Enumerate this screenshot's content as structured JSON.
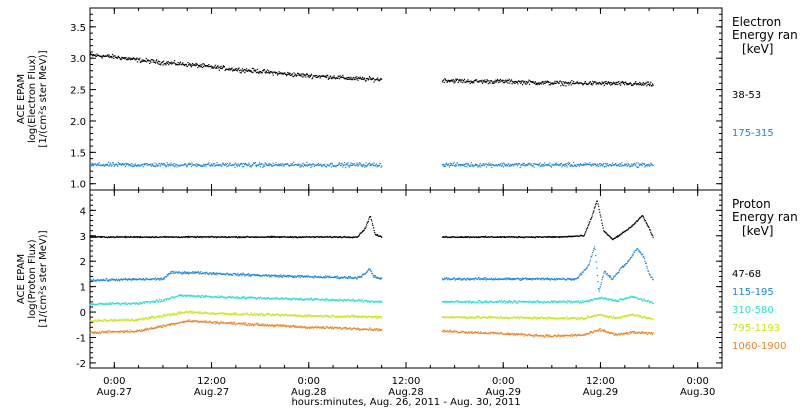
{
  "chart_data": {
    "type": "scatter",
    "xlabel": "hours:minutes, Aug. 26, 2011 - Aug. 30, 2011",
    "x_ticks": [
      {
        "time": "0:00",
        "date": "Aug.27",
        "hours": 0
      },
      {
        "time": "12:00",
        "date": "Aug.27",
        "hours": 12
      },
      {
        "time": "0:00",
        "date": "Aug.28",
        "hours": 24
      },
      {
        "time": "12:00",
        "date": "Aug.28",
        "hours": 36
      },
      {
        "time": "0:00",
        "date": "Aug.29",
        "hours": 48
      },
      {
        "time": "12:00",
        "date": "Aug.29",
        "hours": 60
      },
      {
        "time": "0:00",
        "date": "Aug.30",
        "hours": 72
      }
    ],
    "xlim_hours": [
      -3,
      75
    ],
    "panels": [
      {
        "ylabel_lines": [
          "ACE EPAM",
          "log(Electron Flux)",
          "[1/(cm²s ster MeV)]"
        ],
        "ylim": [
          0.9,
          3.8
        ],
        "yticks": [
          "1.0",
          "1.5",
          "2.0",
          "2.5",
          "3.0",
          "3.5"
        ],
        "yticks_values": [
          1.0,
          1.5,
          2.0,
          2.5,
          3.0,
          3.5
        ],
        "legend_title": [
          "Electron",
          "Energy ran",
          "[keV]"
        ],
        "series": [
          {
            "name": "38-53",
            "color": "#000000",
            "segments": [
              {
                "points": [
                  [
                    -3,
                    3.05
                  ],
                  [
                    0,
                    3.02
                  ],
                  [
                    3,
                    2.97
                  ],
                  [
                    6,
                    2.93
                  ],
                  [
                    9,
                    2.9
                  ],
                  [
                    12,
                    2.86
                  ],
                  [
                    15,
                    2.82
                  ],
                  [
                    18,
                    2.79
                  ],
                  [
                    21,
                    2.75
                  ],
                  [
                    24,
                    2.72
                  ],
                  [
                    27,
                    2.7
                  ],
                  [
                    30,
                    2.67
                  ],
                  [
                    33,
                    2.66
                  ]
                ]
              },
              {
                "points": [
                  [
                    40.5,
                    2.65
                  ],
                  [
                    44,
                    2.63
                  ],
                  [
                    48,
                    2.63
                  ],
                  [
                    52,
                    2.61
                  ],
                  [
                    56,
                    2.6
                  ],
                  [
                    60,
                    2.6
                  ],
                  [
                    64,
                    2.59
                  ],
                  [
                    66.5,
                    2.58
                  ]
                ]
              }
            ]
          },
          {
            "name": "175-315",
            "color": "#1f86d6",
            "segments": [
              {
                "points": [
                  [
                    -3,
                    1.3
                  ],
                  [
                    9,
                    1.3
                  ],
                  [
                    21,
                    1.3
                  ],
                  [
                    33,
                    1.3
                  ]
                ]
              },
              {
                "points": [
                  [
                    40.5,
                    1.3
                  ],
                  [
                    52,
                    1.3
                  ],
                  [
                    66.5,
                    1.3
                  ]
                ]
              }
            ]
          }
        ]
      },
      {
        "ylabel_lines": [
          "ACE EPAM",
          "log(Proton Flux)",
          "[1/(cm²s ster MeV)]"
        ],
        "ylim": [
          -2.2,
          4.8
        ],
        "yticks": [
          "-2",
          "-1",
          "0",
          "1",
          "2",
          "3",
          "4"
        ],
        "yticks_values": [
          -2,
          -1,
          0,
          1,
          2,
          3,
          4
        ],
        "legend_title": [
          "Proton",
          "Energy ran",
          "[keV]"
        ],
        "series": [
          {
            "name": "47-68",
            "color": "#000000",
            "segments": [
              {
                "points": [
                  [
                    -3,
                    2.95
                  ],
                  [
                    10,
                    2.95
                  ],
                  [
                    20,
                    2.95
                  ],
                  [
                    30,
                    2.95
                  ],
                  [
                    31,
                    3.3
                  ],
                  [
                    31.6,
                    3.8
                  ],
                  [
                    32.2,
                    3.05
                  ],
                  [
                    33,
                    2.95
                  ]
                ]
              },
              {
                "points": [
                  [
                    40.5,
                    2.95
                  ],
                  [
                    45,
                    2.95
                  ],
                  [
                    49,
                    2.95
                  ],
                  [
                    55,
                    2.95
                  ],
                  [
                    58,
                    3.0
                  ],
                  [
                    59,
                    3.8
                  ],
                  [
                    59.6,
                    4.4
                  ],
                  [
                    60.4,
                    3.2
                  ],
                  [
                    61.5,
                    2.85
                  ],
                  [
                    62.5,
                    3.05
                  ],
                  [
                    64,
                    3.4
                  ],
                  [
                    65.2,
                    3.8
                  ],
                  [
                    66,
                    3.3
                  ],
                  [
                    66.5,
                    2.95
                  ]
                ]
              }
            ]
          },
          {
            "name": "115-195",
            "color": "#1f86d6",
            "segments": [
              {
                "points": [
                  [
                    -3,
                    1.25
                  ],
                  [
                    2,
                    1.28
                  ],
                  [
                    6,
                    1.3
                  ],
                  [
                    7,
                    1.55
                  ],
                  [
                    10,
                    1.55
                  ],
                  [
                    15,
                    1.48
                  ],
                  [
                    20,
                    1.42
                  ],
                  [
                    25,
                    1.38
                  ],
                  [
                    30,
                    1.35
                  ],
                  [
                    31,
                    1.5
                  ],
                  [
                    31.5,
                    1.7
                  ],
                  [
                    32,
                    1.4
                  ],
                  [
                    33,
                    1.3
                  ]
                ]
              },
              {
                "points": [
                  [
                    40.5,
                    1.3
                  ],
                  [
                    48,
                    1.3
                  ],
                  [
                    57,
                    1.3
                  ],
                  [
                    58.5,
                    1.8
                  ],
                  [
                    59.3,
                    2.6
                  ],
                  [
                    59.8,
                    0.8
                  ],
                  [
                    60.5,
                    1.6
                  ],
                  [
                    61.5,
                    1.3
                  ],
                  [
                    62.5,
                    1.7
                  ],
                  [
                    63.5,
                    2.0
                  ],
                  [
                    64.5,
                    2.5
                  ],
                  [
                    65.3,
                    2.2
                  ],
                  [
                    66,
                    1.5
                  ],
                  [
                    66.5,
                    1.3
                  ]
                ]
              }
            ]
          },
          {
            "name": "310-580",
            "color": "#33dcd2",
            "segments": [
              {
                "points": [
                  [
                    -3,
                    0.3
                  ],
                  [
                    3,
                    0.35
                  ],
                  [
                    6,
                    0.45
                  ],
                  [
                    8,
                    0.65
                  ],
                  [
                    12,
                    0.6
                  ],
                  [
                    18,
                    0.55
                  ],
                  [
                    24,
                    0.5
                  ],
                  [
                    30,
                    0.45
                  ],
                  [
                    33,
                    0.4
                  ]
                ]
              },
              {
                "points": [
                  [
                    40.5,
                    0.4
                  ],
                  [
                    48,
                    0.4
                  ],
                  [
                    58,
                    0.4
                  ],
                  [
                    60,
                    0.55
                  ],
                  [
                    62,
                    0.45
                  ],
                  [
                    64,
                    0.6
                  ],
                  [
                    66.5,
                    0.35
                  ]
                ]
              }
            ]
          },
          {
            "name": "795-1193",
            "color": "#c8e619",
            "segments": [
              {
                "points": [
                  [
                    -3,
                    -0.35
                  ],
                  [
                    3,
                    -0.3
                  ],
                  [
                    6,
                    -0.15
                  ],
                  [
                    9,
                    0.0
                  ],
                  [
                    12,
                    -0.05
                  ],
                  [
                    18,
                    -0.1
                  ],
                  [
                    24,
                    -0.15
                  ],
                  [
                    30,
                    -0.18
                  ],
                  [
                    33,
                    -0.2
                  ]
                ]
              },
              {
                "points": [
                  [
                    40.5,
                    -0.2
                  ],
                  [
                    48,
                    -0.22
                  ],
                  [
                    58,
                    -0.25
                  ],
                  [
                    60,
                    -0.1
                  ],
                  [
                    62,
                    -0.25
                  ],
                  [
                    64,
                    -0.1
                  ],
                  [
                    66.5,
                    -0.3
                  ]
                ]
              }
            ]
          },
          {
            "name": "1060-1900",
            "color": "#e8862a",
            "segments": [
              {
                "points": [
                  [
                    -3,
                    -0.8
                  ],
                  [
                    3,
                    -0.75
                  ],
                  [
                    6,
                    -0.55
                  ],
                  [
                    9,
                    -0.35
                  ],
                  [
                    12,
                    -0.4
                  ],
                  [
                    18,
                    -0.5
                  ],
                  [
                    24,
                    -0.6
                  ],
                  [
                    30,
                    -0.65
                  ],
                  [
                    33,
                    -0.7
                  ]
                ]
              },
              {
                "points": [
                  [
                    40.5,
                    -0.75
                  ],
                  [
                    48,
                    -0.85
                  ],
                  [
                    54,
                    -0.95
                  ],
                  [
                    58,
                    -0.9
                  ],
                  [
                    60,
                    -0.7
                  ],
                  [
                    62,
                    -0.9
                  ],
                  [
                    64,
                    -0.8
                  ],
                  [
                    66.5,
                    -0.85
                  ]
                ]
              }
            ]
          }
        ]
      }
    ]
  }
}
